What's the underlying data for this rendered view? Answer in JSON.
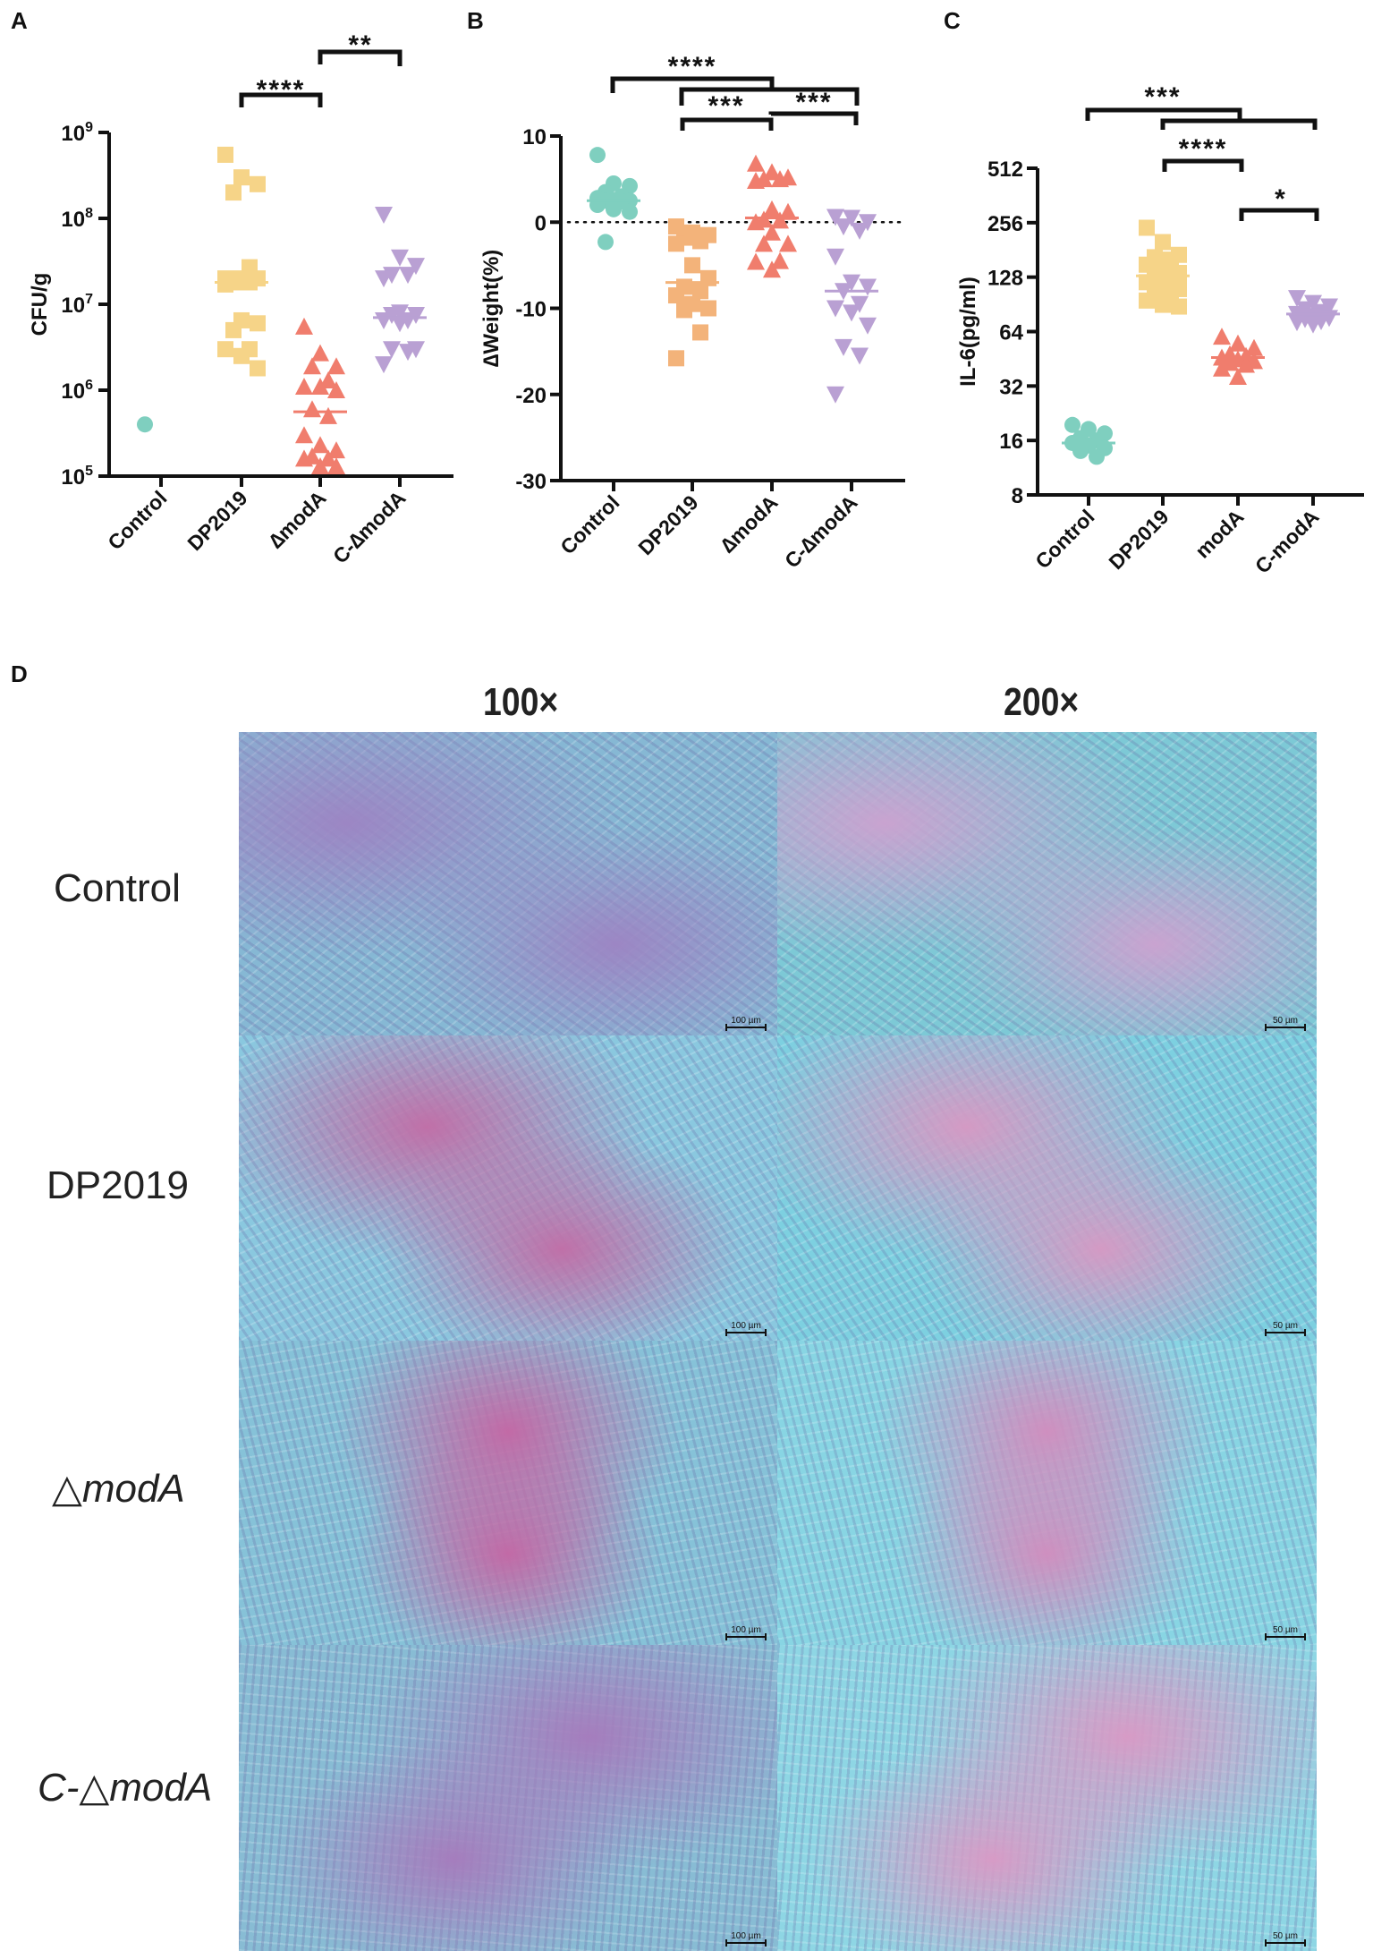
{
  "figure": {
    "panels": [
      "A",
      "B",
      "C",
      "D"
    ]
  },
  "chart_data": [
    {
      "panel": "A",
      "type": "scatter",
      "title": "",
      "xlabel": "",
      "ylabel": "CFU/g",
      "yscale": "log10",
      "ylim": [
        100000,
        1000000000
      ],
      "yticks": [
        "10^5",
        "10^6",
        "10^7",
        "10^8",
        "10^9"
      ],
      "categories": [
        "Control",
        "DP2019",
        "∆modA",
        "C-∆modA"
      ],
      "series": [
        {
          "name": "Control",
          "marker": "circle",
          "color": "#7fcfbf",
          "values": [
            400000
          ],
          "mean": null
        },
        {
          "name": "DP2019",
          "marker": "square",
          "color": "#f6d488",
          "values": [
            550000000,
            300000000,
            250000000,
            200000000,
            27000000,
            20000000,
            20000000,
            20000000,
            18000000,
            18000000,
            17000000,
            6500000,
            6000000,
            5000000,
            3000000,
            3000000,
            2500000,
            1800000
          ],
          "mean": 18000000
        },
        {
          "name": "∆modA",
          "marker": "triangle-up",
          "color": "#f07d6d",
          "values": [
            5500000,
            2700000,
            1900000,
            1900000,
            1300000,
            1100000,
            1100000,
            1000000,
            600000,
            500000,
            300000,
            230000,
            200000,
            170000,
            160000,
            160000,
            130000,
            130000
          ],
          "mean": 560000
        },
        {
          "name": "C-∆modA",
          "marker": "triangle-down",
          "color": "#b9a0d3",
          "values": [
            110000000,
            35000000,
            28000000,
            22000000,
            22000000,
            20000000,
            8000000,
            7500000,
            7500000,
            6500000,
            6500000,
            6000000,
            3000000,
            3000000,
            2800000,
            2000000
          ],
          "mean": 7000000
        }
      ],
      "significance": [
        {
          "from": "DP2019",
          "to": "∆modA",
          "label": "****"
        },
        {
          "from": "∆modA",
          "to": "C-∆modA",
          "label": "**"
        }
      ]
    },
    {
      "panel": "B",
      "type": "scatter",
      "title": "",
      "xlabel": "",
      "ylabel": "∆Weight(%)",
      "ylim": [
        -30,
        10
      ],
      "yticks": [
        10,
        0,
        -10,
        -20,
        -30
      ],
      "reference_line": {
        "y": 0,
        "style": "dotted"
      },
      "categories": [
        "Control",
        "DP2019",
        "∆modA",
        "C-∆modA"
      ],
      "series": [
        {
          "name": "Control",
          "marker": "circle",
          "color": "#7fcfbf",
          "values": [
            7.8,
            4.5,
            4.2,
            3.5,
            3.0,
            2.8,
            2.6,
            2.5,
            2.5,
            2.4,
            2.0,
            1.5,
            1.2,
            -2.3
          ],
          "mean": 2.5
        },
        {
          "name": "DP2019",
          "marker": "square",
          "color": "#f3b37a",
          "values": [
            -0.5,
            -1.2,
            -1.5,
            -1.8,
            -2.2,
            -2.5,
            -5.0,
            -6.5,
            -7.5,
            -8.0,
            -8.5,
            -9.5,
            -10.0,
            -10.2,
            -12.8,
            -15.8
          ],
          "mean": -7.0
        },
        {
          "name": "∆modA",
          "marker": "triangle-up",
          "color": "#f07d6d",
          "values": [
            6.8,
            5.8,
            5.2,
            5.0,
            5.0,
            4.8,
            1.5,
            1.2,
            0.3,
            0.2,
            0.0,
            -1.2,
            -2.5,
            -2.5,
            -4.5,
            -4.6,
            -5.5
          ],
          "mean": 0.5
        },
        {
          "name": "C-∆modA",
          "marker": "triangle-down",
          "color": "#b9a0d3",
          "values": [
            0.6,
            0.5,
            0.0,
            -0.5,
            -1.0,
            -4.0,
            -7.0,
            -7.5,
            -8.0,
            -9.5,
            -10.0,
            -10.5,
            -12.0,
            -14.5,
            -15.5,
            -20.0
          ],
          "mean": -8.0
        }
      ],
      "significance": [
        {
          "from": "Control",
          "to": "[DP2019..C-∆modA]",
          "label": "****"
        },
        {
          "from": "DP2019",
          "to": "∆modA",
          "label": "***"
        },
        {
          "from": "∆modA",
          "to": "C-∆modA",
          "label": "***"
        }
      ]
    },
    {
      "panel": "C",
      "type": "scatter",
      "title": "",
      "xlabel": "",
      "ylabel": "IL-6(pg/ml)",
      "yscale": "log2",
      "ylim": [
        8,
        512
      ],
      "yticks": [
        512,
        256,
        128,
        64,
        32,
        16,
        8
      ],
      "categories": [
        "Control",
        "DP2019",
        "modA",
        "C-modA"
      ],
      "series": [
        {
          "name": "Control",
          "marker": "circle",
          "color": "#7fcfbf",
          "values": [
            19.5,
            18.5,
            17.5,
            16.5,
            16.0,
            15.5,
            15.0,
            14.5,
            14.0,
            13.0
          ],
          "mean": 15.5
        },
        {
          "name": "DP2019",
          "marker": "square",
          "color": "#f6d488",
          "values": [
            240,
            200,
            170,
            165,
            160,
            150,
            140,
            135,
            130,
            125,
            120,
            115,
            110,
            105,
            100,
            95,
            90,
            88
          ],
          "mean": 130
        },
        {
          "name": "modA",
          "marker": "triangle-up",
          "color": "#f07d6d",
          "values": [
            60,
            55,
            52,
            48,
            47,
            46,
            45,
            44,
            43,
            42,
            40,
            36
          ],
          "mean": 46
        },
        {
          "name": "C-modA",
          "marker": "triangle-down",
          "color": "#b9a0d3",
          "values": [
            98,
            92,
            88,
            85,
            82,
            80,
            78,
            76,
            75,
            73,
            72,
            70
          ],
          "mean": 80
        }
      ],
      "significance": [
        {
          "from": "Control",
          "to": "[DP2019..C-modA]",
          "label": "***"
        },
        {
          "from": "DP2019",
          "to": "modA",
          "label": "****"
        },
        {
          "from": "modA",
          "to": "C-modA",
          "label": "*"
        }
      ]
    }
  ],
  "histology": {
    "panel_letter": "D",
    "columns": [
      "100×",
      "200×"
    ],
    "rows": [
      {
        "label": "Control",
        "italic": false
      },
      {
        "label": "DP2019",
        "italic": false
      },
      {
        "label": "△modA",
        "italic": true
      },
      {
        "label": "C-△modA",
        "italic": true
      }
    ],
    "scale_bars": [
      "100 µm",
      "50 µm"
    ]
  }
}
